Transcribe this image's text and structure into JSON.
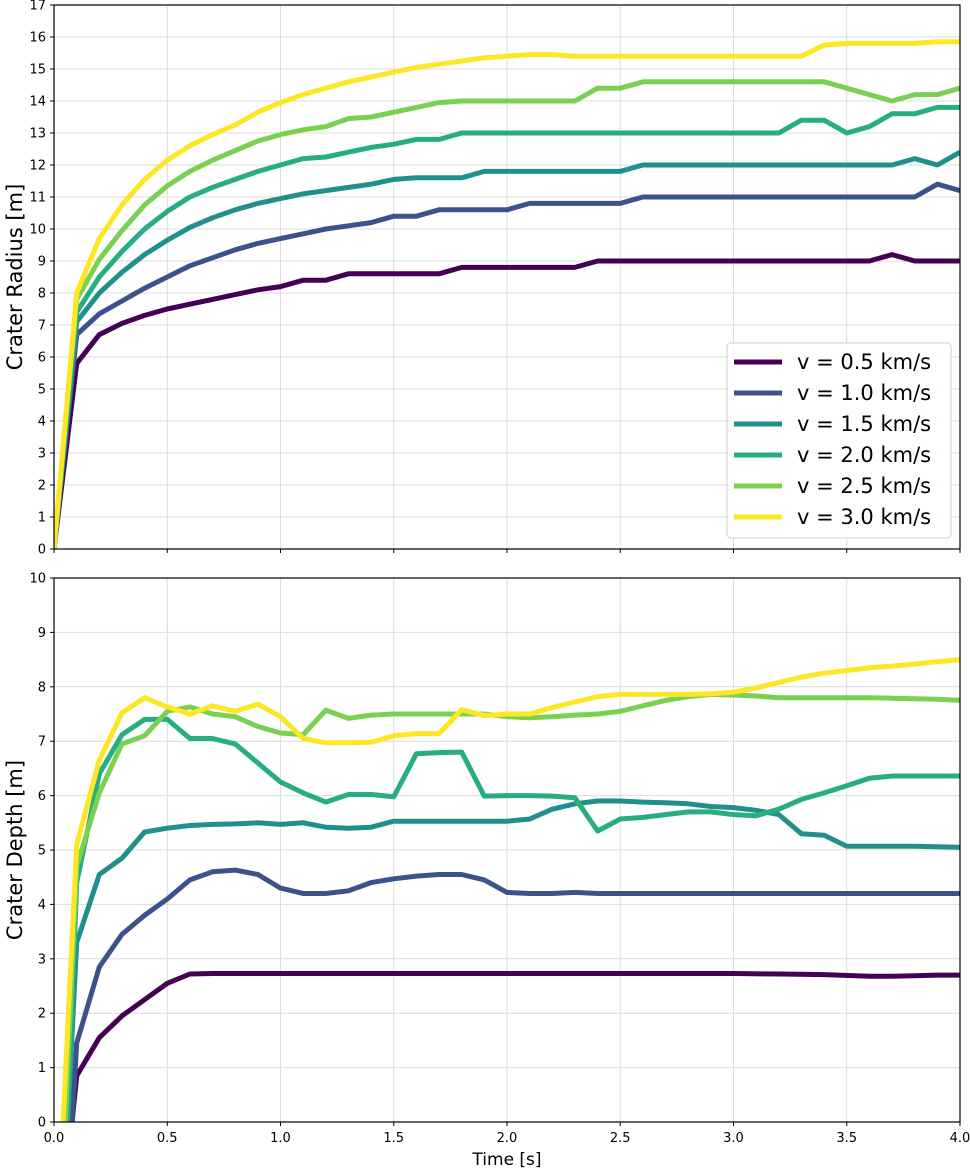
{
  "chart_data": [
    {
      "type": "line",
      "ylabel": "Crater Radius [m]",
      "xlim": [
        0,
        4.0
      ],
      "ylim": [
        0,
        17
      ],
      "xticks": [
        0.0,
        0.5,
        1.0,
        1.5,
        2.0,
        2.5,
        3.0,
        3.5,
        4.0
      ],
      "xtick_labels": [],
      "yticks": [
        0,
        1,
        2,
        3,
        4,
        5,
        6,
        7,
        8,
        9,
        10,
        11,
        12,
        13,
        14,
        15,
        16,
        17
      ],
      "ytick_labels": [
        "0",
        "1",
        "2",
        "3",
        "4",
        "5",
        "6",
        "7",
        "8",
        "9",
        "10",
        "11",
        "12",
        "13",
        "14",
        "15",
        "16",
        "17"
      ],
      "grid": true,
      "legend_position": "lower-right",
      "series": [
        {
          "name": "v = 0.5 km/s",
          "color": "#440154",
          "x": [
            0,
            0.1,
            0.2,
            0.3,
            0.4,
            0.5,
            0.6,
            0.7,
            0.8,
            0.9,
            1.0,
            1.1,
            1.2,
            1.3,
            1.4,
            1.5,
            1.6,
            1.7,
            1.8,
            1.9,
            2.0,
            2.1,
            2.2,
            2.3,
            2.4,
            2.5,
            2.6,
            2.7,
            2.8,
            2.9,
            3.0,
            3.1,
            3.2,
            3.3,
            3.4,
            3.5,
            3.6,
            3.7,
            3.8,
            3.9,
            4.0
          ],
          "y": [
            0,
            5.8,
            6.7,
            7.05,
            7.3,
            7.5,
            7.65,
            7.8,
            7.95,
            8.1,
            8.2,
            8.4,
            8.4,
            8.6,
            8.6,
            8.6,
            8.6,
            8.6,
            8.8,
            8.8,
            8.8,
            8.8,
            8.8,
            8.8,
            9.0,
            9.0,
            9.0,
            9.0,
            9.0,
            9.0,
            9.0,
            9.0,
            9.0,
            9.0,
            9.0,
            9.0,
            9.0,
            9.2,
            9.0,
            9.0,
            9.0
          ]
        },
        {
          "name": "v = 1.0 km/s",
          "color": "#3b528b",
          "x": [
            0,
            0.1,
            0.2,
            0.3,
            0.4,
            0.5,
            0.6,
            0.7,
            0.8,
            0.9,
            1.0,
            1.1,
            1.2,
            1.3,
            1.4,
            1.5,
            1.6,
            1.7,
            1.8,
            1.9,
            2.0,
            2.1,
            2.2,
            2.3,
            2.4,
            2.5,
            2.6,
            2.7,
            2.8,
            2.9,
            3.0,
            3.1,
            3.2,
            3.3,
            3.4,
            3.5,
            3.6,
            3.7,
            3.8,
            3.9,
            4.0
          ],
          "y": [
            0,
            6.7,
            7.35,
            7.75,
            8.15,
            8.5,
            8.85,
            9.1,
            9.35,
            9.55,
            9.7,
            9.85,
            10.0,
            10.1,
            10.2,
            10.4,
            10.4,
            10.6,
            10.6,
            10.6,
            10.6,
            10.8,
            10.8,
            10.8,
            10.8,
            10.8,
            11.0,
            11.0,
            11.0,
            11.0,
            11.0,
            11.0,
            11.0,
            11.0,
            11.0,
            11.0,
            11.0,
            11.0,
            11.0,
            11.4,
            11.2
          ]
        },
        {
          "name": "v = 1.5 km/s",
          "color": "#21908d",
          "x": [
            0,
            0.1,
            0.2,
            0.3,
            0.4,
            0.5,
            0.6,
            0.7,
            0.8,
            0.9,
            1.0,
            1.1,
            1.2,
            1.3,
            1.4,
            1.5,
            1.6,
            1.7,
            1.8,
            1.9,
            2.0,
            2.1,
            2.2,
            2.3,
            2.4,
            2.5,
            2.6,
            2.7,
            2.8,
            2.9,
            3.0,
            3.1,
            3.2,
            3.3,
            3.4,
            3.5,
            3.6,
            3.7,
            3.8,
            3.9,
            4.0
          ],
          "y": [
            0,
            7.1,
            8.0,
            8.65,
            9.2,
            9.65,
            10.05,
            10.35,
            10.6,
            10.8,
            10.95,
            11.1,
            11.2,
            11.3,
            11.4,
            11.55,
            11.6,
            11.6,
            11.6,
            11.8,
            11.8,
            11.8,
            11.8,
            11.8,
            11.8,
            11.8,
            12.0,
            12.0,
            12.0,
            12.0,
            12.0,
            12.0,
            12.0,
            12.0,
            12.0,
            12.0,
            12.0,
            12.0,
            12.2,
            12.0,
            12.4
          ]
        },
        {
          "name": "v = 2.0 km/s",
          "color": "#27ad81",
          "x": [
            0,
            0.1,
            0.2,
            0.3,
            0.4,
            0.5,
            0.6,
            0.7,
            0.8,
            0.9,
            1.0,
            1.1,
            1.2,
            1.3,
            1.4,
            1.5,
            1.6,
            1.7,
            1.8,
            1.9,
            2.0,
            2.1,
            2.2,
            2.3,
            2.4,
            2.5,
            2.6,
            2.7,
            2.8,
            2.9,
            3.0,
            3.1,
            3.2,
            3.3,
            3.4,
            3.5,
            3.6,
            3.7,
            3.8,
            3.9,
            4.0
          ],
          "y": [
            0,
            7.4,
            8.5,
            9.3,
            10.0,
            10.55,
            11.0,
            11.3,
            11.55,
            11.8,
            12.0,
            12.2,
            12.25,
            12.4,
            12.55,
            12.65,
            12.8,
            12.8,
            13.0,
            13.0,
            13.0,
            13.0,
            13.0,
            13.0,
            13.0,
            13.0,
            13.0,
            13.0,
            13.0,
            13.0,
            13.0,
            13.0,
            13.0,
            13.4,
            13.4,
            13.0,
            13.2,
            13.6,
            13.6,
            13.8,
            13.8
          ]
        },
        {
          "name": "v = 2.5 km/s",
          "color": "#7ad151",
          "x": [
            0,
            0.1,
            0.2,
            0.3,
            0.4,
            0.5,
            0.6,
            0.7,
            0.8,
            0.9,
            1.0,
            1.1,
            1.2,
            1.3,
            1.4,
            1.5,
            1.6,
            1.7,
            1.8,
            1.9,
            2.0,
            2.1,
            2.2,
            2.3,
            2.4,
            2.5,
            2.6,
            2.7,
            2.8,
            2.9,
            3.0,
            3.1,
            3.2,
            3.3,
            3.4,
            3.5,
            3.6,
            3.7,
            3.8,
            3.9,
            4.0
          ],
          "y": [
            0,
            7.8,
            9.05,
            9.95,
            10.75,
            11.35,
            11.8,
            12.15,
            12.45,
            12.75,
            12.95,
            13.1,
            13.2,
            13.45,
            13.5,
            13.65,
            13.8,
            13.95,
            14.0,
            14.0,
            14.0,
            14.0,
            14.0,
            14.0,
            14.4,
            14.4,
            14.6,
            14.6,
            14.6,
            14.6,
            14.6,
            14.6,
            14.6,
            14.6,
            14.6,
            14.4,
            14.2,
            14.0,
            14.2,
            14.2,
            14.4
          ]
        },
        {
          "name": "v = 3.0 km/s",
          "color": "#fde725",
          "x": [
            0,
            0.1,
            0.2,
            0.3,
            0.4,
            0.5,
            0.6,
            0.7,
            0.8,
            0.9,
            1.0,
            1.1,
            1.2,
            1.3,
            1.4,
            1.5,
            1.6,
            1.7,
            1.8,
            1.9,
            2.0,
            2.1,
            2.2,
            2.3,
            2.4,
            2.5,
            2.6,
            2.7,
            2.8,
            2.9,
            3.0,
            3.1,
            3.2,
            3.3,
            3.4,
            3.5,
            3.6,
            3.7,
            3.8,
            3.9,
            4.0
          ],
          "y": [
            0,
            8.0,
            9.7,
            10.75,
            11.55,
            12.15,
            12.6,
            12.95,
            13.25,
            13.65,
            13.95,
            14.2,
            14.4,
            14.6,
            14.75,
            14.9,
            15.05,
            15.15,
            15.25,
            15.35,
            15.4,
            15.45,
            15.45,
            15.4,
            15.4,
            15.4,
            15.4,
            15.4,
            15.4,
            15.4,
            15.4,
            15.4,
            15.4,
            15.4,
            15.75,
            15.8,
            15.8,
            15.8,
            15.8,
            15.85,
            15.85
          ]
        }
      ]
    },
    {
      "type": "line",
      "xlabel": "Time [s]",
      "ylabel": "Crater Depth [m]",
      "xlim": [
        0,
        4.0
      ],
      "ylim": [
        0,
        10
      ],
      "xticks": [
        0.0,
        0.5,
        1.0,
        1.5,
        2.0,
        2.5,
        3.0,
        3.5,
        4.0
      ],
      "xtick_labels": [
        "0.0",
        "0.5",
        "1.0",
        "1.5",
        "2.0",
        "2.5",
        "3.0",
        "3.5",
        "4.0"
      ],
      "yticks": [
        0,
        1,
        2,
        3,
        4,
        5,
        6,
        7,
        8,
        9,
        10
      ],
      "ytick_labels": [
        "0",
        "1",
        "2",
        "3",
        "4",
        "5",
        "6",
        "7",
        "8",
        "9",
        "10"
      ],
      "grid": true,
      "series": [
        {
          "color": "#440154",
          "x": [
            0.08,
            0.1,
            0.2,
            0.3,
            0.4,
            0.5,
            0.6,
            0.7,
            0.8,
            0.9,
            1.0,
            1.2,
            1.4,
            1.6,
            1.8,
            2.0,
            2.2,
            2.4,
            2.6,
            2.8,
            3.0,
            3.2,
            3.4,
            3.6,
            3.7,
            3.8,
            3.9,
            4.0
          ],
          "y": [
            0,
            0.85,
            1.55,
            1.95,
            2.25,
            2.55,
            2.72,
            2.73,
            2.73,
            2.73,
            2.73,
            2.73,
            2.73,
            2.73,
            2.73,
            2.73,
            2.73,
            2.73,
            2.73,
            2.73,
            2.73,
            2.72,
            2.71,
            2.68,
            2.68,
            2.69,
            2.7,
            2.7
          ]
        },
        {
          "color": "#3b528b",
          "x": [
            0.08,
            0.1,
            0.2,
            0.3,
            0.4,
            0.5,
            0.6,
            0.7,
            0.8,
            0.9,
            1.0,
            1.1,
            1.2,
            1.3,
            1.4,
            1.5,
            1.6,
            1.7,
            1.8,
            1.9,
            2.0,
            2.1,
            2.2,
            2.3,
            2.4,
            2.6,
            2.8,
            3.0,
            3.2,
            3.4,
            3.6,
            3.8,
            4.0
          ],
          "y": [
            0,
            1.45,
            2.85,
            3.45,
            3.8,
            4.1,
            4.45,
            4.6,
            4.63,
            4.55,
            4.3,
            4.2,
            4.2,
            4.25,
            4.4,
            4.47,
            4.52,
            4.55,
            4.55,
            4.45,
            4.22,
            4.2,
            4.2,
            4.22,
            4.2,
            4.2,
            4.2,
            4.2,
            4.2,
            4.2,
            4.2,
            4.2,
            4.2
          ]
        },
        {
          "color": "#21908d",
          "x": [
            0.06,
            0.1,
            0.2,
            0.3,
            0.4,
            0.5,
            0.6,
            0.7,
            0.8,
            0.9,
            1.0,
            1.1,
            1.2,
            1.3,
            1.4,
            1.5,
            1.6,
            1.7,
            1.8,
            1.9,
            2.0,
            2.1,
            2.2,
            2.3,
            2.4,
            2.5,
            2.6,
            2.7,
            2.8,
            2.9,
            3.0,
            3.1,
            3.2,
            3.3,
            3.4,
            3.5,
            3.6,
            3.7,
            3.8,
            3.9,
            4.0
          ],
          "y": [
            0,
            3.3,
            4.55,
            4.85,
            5.33,
            5.4,
            5.45,
            5.47,
            5.48,
            5.5,
            5.47,
            5.5,
            5.42,
            5.4,
            5.42,
            5.53,
            5.53,
            5.53,
            5.53,
            5.53,
            5.53,
            5.57,
            5.75,
            5.85,
            5.9,
            5.9,
            5.88,
            5.87,
            5.85,
            5.8,
            5.78,
            5.73,
            5.65,
            5.3,
            5.27,
            5.07,
            5.07,
            5.07,
            5.07,
            5.06,
            5.05
          ]
        },
        {
          "color": "#27ad81",
          "x": [
            0.06,
            0.1,
            0.2,
            0.3,
            0.4,
            0.5,
            0.6,
            0.7,
            0.8,
            0.9,
            1.0,
            1.1,
            1.2,
            1.3,
            1.4,
            1.5,
            1.6,
            1.7,
            1.8,
            1.9,
            2.0,
            2.1,
            2.2,
            2.3,
            2.4,
            2.5,
            2.6,
            2.7,
            2.8,
            2.9,
            3.0,
            3.1,
            3.2,
            3.3,
            3.4,
            3.5,
            3.6,
            3.7,
            3.8,
            3.9,
            4.0
          ],
          "y": [
            0,
            4.4,
            6.4,
            7.12,
            7.4,
            7.4,
            7.05,
            7.05,
            6.95,
            6.6,
            6.25,
            6.05,
            5.88,
            6.02,
            6.02,
            5.98,
            6.77,
            6.79,
            6.8,
            5.99,
            6.0,
            6.0,
            5.99,
            5.96,
            5.35,
            5.57,
            5.6,
            5.65,
            5.7,
            5.7,
            5.65,
            5.63,
            5.75,
            5.93,
            6.05,
            6.18,
            6.32,
            6.36,
            6.36,
            6.36,
            6.36
          ]
        },
        {
          "color": "#7ad151",
          "x": [
            0.05,
            0.1,
            0.2,
            0.3,
            0.4,
            0.5,
            0.6,
            0.7,
            0.8,
            0.9,
            1.0,
            1.1,
            1.2,
            1.3,
            1.4,
            1.5,
            1.6,
            1.7,
            1.8,
            1.9,
            2.0,
            2.1,
            2.2,
            2.3,
            2.4,
            2.5,
            2.6,
            2.7,
            2.8,
            2.9,
            3.0,
            3.1,
            3.2,
            3.3,
            3.4,
            3.5,
            3.6,
            3.7,
            3.8,
            3.9,
            4.0
          ],
          "y": [
            0,
            4.7,
            6.05,
            6.95,
            7.1,
            7.55,
            7.63,
            7.5,
            7.45,
            7.27,
            7.15,
            7.12,
            7.57,
            7.42,
            7.48,
            7.5,
            7.5,
            7.5,
            7.5,
            7.5,
            7.45,
            7.43,
            7.45,
            7.48,
            7.5,
            7.55,
            7.65,
            7.75,
            7.82,
            7.86,
            7.85,
            7.83,
            7.8,
            7.8,
            7.8,
            7.8,
            7.8,
            7.79,
            7.78,
            7.77,
            7.75
          ]
        },
        {
          "color": "#fde725",
          "x": [
            0.04,
            0.1,
            0.2,
            0.3,
            0.4,
            0.5,
            0.6,
            0.7,
            0.8,
            0.9,
            1.0,
            1.1,
            1.2,
            1.3,
            1.4,
            1.5,
            1.6,
            1.7,
            1.8,
            1.9,
            2.0,
            2.1,
            2.2,
            2.3,
            2.4,
            2.5,
            2.6,
            2.7,
            2.8,
            2.9,
            3.0,
            3.1,
            3.2,
            3.3,
            3.4,
            3.5,
            3.6,
            3.7,
            3.8,
            3.9,
            4.0
          ],
          "y": [
            0,
            5.1,
            6.65,
            7.52,
            7.8,
            7.63,
            7.5,
            7.65,
            7.55,
            7.68,
            7.45,
            7.05,
            6.97,
            6.97,
            6.98,
            7.1,
            7.14,
            7.14,
            7.58,
            7.47,
            7.5,
            7.5,
            7.62,
            7.72,
            7.82,
            7.86,
            7.86,
            7.86,
            7.86,
            7.87,
            7.9,
            7.98,
            8.08,
            8.18,
            8.25,
            8.3,
            8.35,
            8.38,
            8.42,
            8.46,
            8.5
          ]
        }
      ]
    }
  ]
}
